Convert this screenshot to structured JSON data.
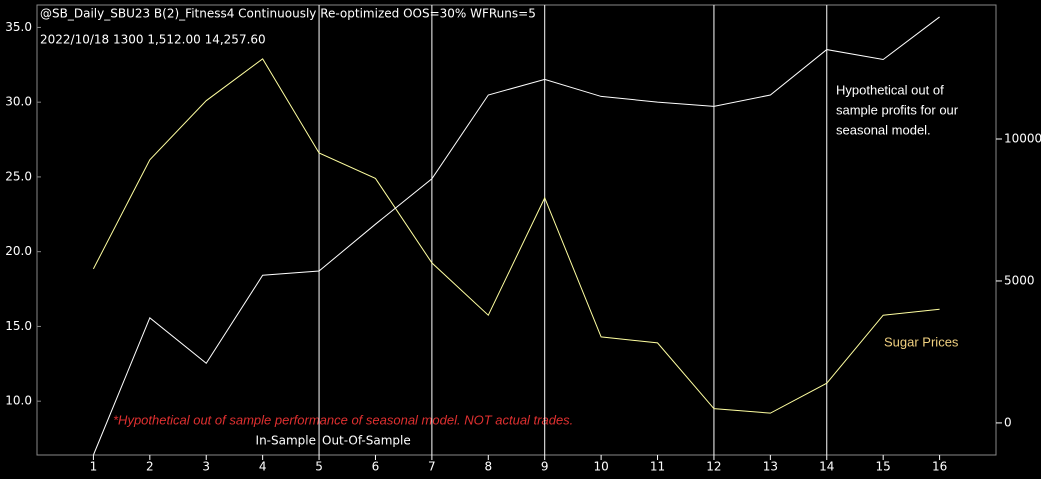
{
  "chart_data": {
    "type": "line",
    "title": "@SB_Daily_SBU23 B(2)_Fitness4 Continuously Re-optimized  OOS=30%  WFRuns=5",
    "subtitle": "2022/10/18   1300   1,512.00   14,257.60",
    "x": [
      1,
      2,
      3,
      4,
      5,
      6,
      7,
      8,
      9,
      10,
      11,
      12,
      13,
      14,
      15,
      16
    ],
    "xlim": [
      0,
      17
    ],
    "xticks": [
      1,
      2,
      3,
      4,
      5,
      6,
      7,
      8,
      9,
      10,
      11,
      12,
      13,
      14,
      15,
      16
    ],
    "ylim": [
      6.4,
      36.5
    ],
    "yticks": [
      {
        "value": 10,
        "label": "10.0"
      },
      {
        "value": 15,
        "label": "15.0"
      },
      {
        "value": 20,
        "label": "20.0"
      },
      {
        "value": 25,
        "label": "25.0"
      },
      {
        "value": 30,
        "label": "30.0"
      },
      {
        "value": 35,
        "label": "35.0"
      }
    ],
    "y2lim": [
      -1130,
      14720
    ],
    "y2ticks": [
      0,
      5000,
      10000
    ],
    "vlines": [
      5,
      7,
      9,
      12,
      14
    ],
    "series": [
      {
        "name": "Sugar Prices",
        "color": "#ffffa0",
        "values": [
          18.85,
          26.15,
          30.1,
          32.9,
          26.6,
          24.9,
          19.25,
          15.75,
          23.6,
          14.3,
          13.9,
          9.5,
          9.2,
          11.2,
          15.75,
          16.15
        ]
      },
      {
        "color": "#ffffff",
        "axis": "y2",
        "values": [
          -1130,
          3700,
          2100,
          5200,
          5350,
          7000,
          8600,
          11550,
          12100,
          11500,
          11300,
          11150,
          11550,
          13150,
          12800,
          14300
        ]
      }
    ],
    "annotations": {
      "profits_note": [
        "Hypothetical out of",
        "sample profits for our",
        "seasonal model."
      ],
      "disclaimer": "*Hypothetical out of sample performance of seasonal model. NOT actual trades.",
      "in_sample": "In-Sample",
      "out_of_sample": "Out-Of-Sample"
    }
  }
}
